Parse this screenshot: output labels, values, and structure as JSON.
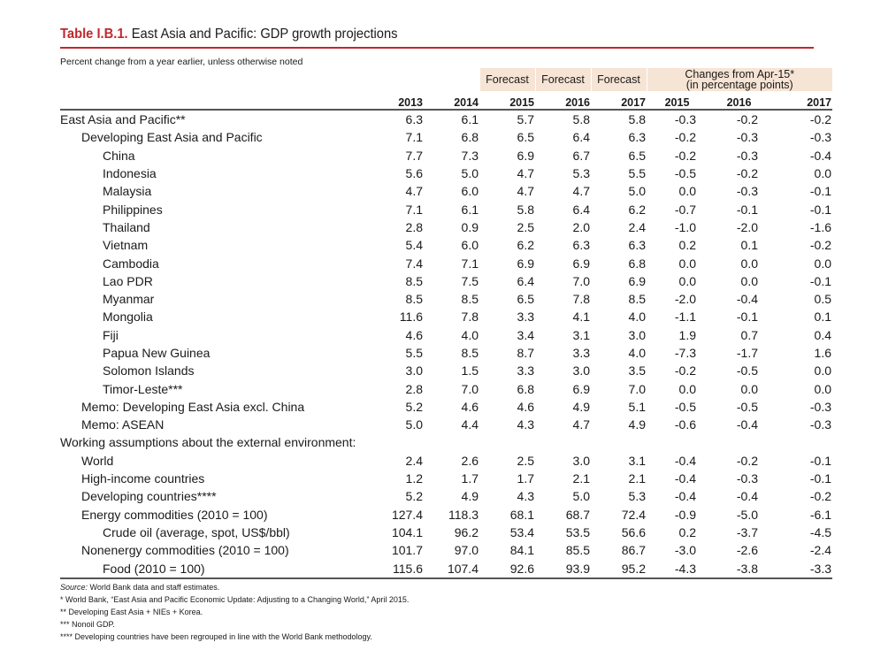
{
  "title": {
    "number": "Table I.B.1.",
    "text": "East Asia and Pacific: GDP growth projections"
  },
  "subtitle": "Percent change from a year earlier, unless otherwise noted",
  "header": {
    "forecast_labels": [
      "Forecast",
      "Forecast",
      "Forecast"
    ],
    "changes_label_line1": "Changes from Apr-15*",
    "changes_label_line2": "(in percentage points)",
    "years": [
      "2013",
      "2014",
      "2015",
      "2016",
      "2017",
      "2015",
      "2016",
      "2017"
    ]
  },
  "rows": [
    {
      "label": "East Asia and Pacific**",
      "indent": 0,
      "values": [
        "6.3",
        "6.1",
        "5.7",
        "5.8",
        "5.8",
        "-0.3",
        "-0.2",
        "-0.2"
      ]
    },
    {
      "label": "Developing East Asia and Pacific",
      "indent": 1,
      "values": [
        "7.1",
        "6.8",
        "6.5",
        "6.4",
        "6.3",
        "-0.2",
        "-0.3",
        "-0.3"
      ]
    },
    {
      "label": "China",
      "indent": 2,
      "values": [
        "7.7",
        "7.3",
        "6.9",
        "6.7",
        "6.5",
        "-0.2",
        "-0.3",
        "-0.4"
      ]
    },
    {
      "label": "Indonesia",
      "indent": 2,
      "values": [
        "5.6",
        "5.0",
        "4.7",
        "5.3",
        "5.5",
        "-0.5",
        "-0.2",
        "0.0"
      ]
    },
    {
      "label": "Malaysia",
      "indent": 2,
      "values": [
        "4.7",
        "6.0",
        "4.7",
        "4.7",
        "5.0",
        "0.0",
        "-0.3",
        "-0.1"
      ]
    },
    {
      "label": "Philippines",
      "indent": 2,
      "values": [
        "7.1",
        "6.1",
        "5.8",
        "6.4",
        "6.2",
        "-0.7",
        "-0.1",
        "-0.1"
      ]
    },
    {
      "label": "Thailand",
      "indent": 2,
      "values": [
        "2.8",
        "0.9",
        "2.5",
        "2.0",
        "2.4",
        "-1.0",
        "-2.0",
        "-1.6"
      ]
    },
    {
      "label": "Vietnam",
      "indent": 2,
      "values": [
        "5.4",
        "6.0",
        "6.2",
        "6.3",
        "6.3",
        "0.2",
        "0.1",
        "-0.2"
      ]
    },
    {
      "label": "Cambodia",
      "indent": 2,
      "values": [
        "7.4",
        "7.1",
        "6.9",
        "6.9",
        "6.8",
        "0.0",
        "0.0",
        "0.0"
      ]
    },
    {
      "label": "Lao PDR",
      "indent": 2,
      "values": [
        "8.5",
        "7.5",
        "6.4",
        "7.0",
        "6.9",
        "0.0",
        "0.0",
        "-0.1"
      ]
    },
    {
      "label": "Myanmar",
      "indent": 2,
      "values": [
        "8.5",
        "8.5",
        "6.5",
        "7.8",
        "8.5",
        "-2.0",
        "-0.4",
        "0.5"
      ]
    },
    {
      "label": "Mongolia",
      "indent": 2,
      "values": [
        "11.6",
        "7.8",
        "3.3",
        "4.1",
        "4.0",
        "-1.1",
        "-0.1",
        "0.1"
      ]
    },
    {
      "label": "Fiji",
      "indent": 2,
      "values": [
        "4.6",
        "4.0",
        "3.4",
        "3.1",
        "3.0",
        "1.9",
        "0.7",
        "0.4"
      ]
    },
    {
      "label": "Papua New Guinea",
      "indent": 2,
      "values": [
        "5.5",
        "8.5",
        "8.7",
        "3.3",
        "4.0",
        "-7.3",
        "-1.7",
        "1.6"
      ]
    },
    {
      "label": "Solomon Islands",
      "indent": 2,
      "values": [
        "3.0",
        "1.5",
        "3.3",
        "3.0",
        "3.5",
        "-0.2",
        "-0.5",
        "0.0"
      ]
    },
    {
      "label": "Timor-Leste***",
      "indent": 2,
      "values": [
        "2.8",
        "7.0",
        "6.8",
        "6.9",
        "7.0",
        "0.0",
        "0.0",
        "0.0"
      ]
    },
    {
      "label": "Memo: Developing East Asia excl. China",
      "indent": 1,
      "values": [
        "5.2",
        "4.6",
        "4.6",
        "4.9",
        "5.1",
        "-0.5",
        "-0.5",
        "-0.3"
      ]
    },
    {
      "label": "Memo: ASEAN",
      "indent": 1,
      "values": [
        "5.0",
        "4.4",
        "4.3",
        "4.7",
        "4.9",
        "-0.6",
        "-0.4",
        "-0.3"
      ]
    },
    {
      "label": "Working assumptions about the external environment:",
      "indent": 0,
      "section": true,
      "values": []
    },
    {
      "label": "World",
      "indent": 1,
      "values": [
        "2.4",
        "2.6",
        "2.5",
        "3.0",
        "3.1",
        "-0.4",
        "-0.2",
        "-0.1"
      ]
    },
    {
      "label": "High-income countries",
      "indent": 1,
      "values": [
        "1.2",
        "1.7",
        "1.7",
        "2.1",
        "2.1",
        "-0.4",
        "-0.3",
        "-0.1"
      ]
    },
    {
      "label": "Developing countries****",
      "indent": 1,
      "values": [
        "5.2",
        "4.9",
        "4.3",
        "5.0",
        "5.3",
        "-0.4",
        "-0.4",
        "-0.2"
      ]
    },
    {
      "label": "Energy commodities (2010 = 100)",
      "indent": 1,
      "values": [
        "127.4",
        "118.3",
        "68.1",
        "68.7",
        "72.4",
        "-0.9",
        "-5.0",
        "-6.1"
      ]
    },
    {
      "label": "Crude oil (average, spot, US$/bbl)",
      "indent": 2,
      "values": [
        "104.1",
        "96.2",
        "53.4",
        "53.5",
        "56.6",
        "0.2",
        "-3.7",
        "-4.5"
      ]
    },
    {
      "label": "Nonenergy commodities (2010 = 100)",
      "indent": 1,
      "values": [
        "101.7",
        "97.0",
        "84.1",
        "85.5",
        "86.7",
        "-3.0",
        "-2.6",
        "-2.4"
      ]
    },
    {
      "label": "Food (2010 = 100)",
      "indent": 2,
      "values": [
        "115.6",
        "107.4",
        "92.6",
        "93.9",
        "95.2",
        "-4.3",
        "-3.8",
        "-3.3"
      ]
    }
  ],
  "notes": {
    "source_label": "Source:",
    "source_text": " World Bank data and staff estimates.",
    "footnotes": [
      "* World Bank, “East Asia and Pacific Economic Update: Adjusting to a Changing World,” April 2015.",
      "** Developing East Asia + NIEs + Korea.",
      "*** Nonoil GDP.",
      "**** Developing countries have been regrouped in line with the World Bank methodology."
    ]
  },
  "colors": {
    "accent_red": "#c0282d",
    "header_shade": "#f6e4d4",
    "rule_gray": "#555555"
  }
}
